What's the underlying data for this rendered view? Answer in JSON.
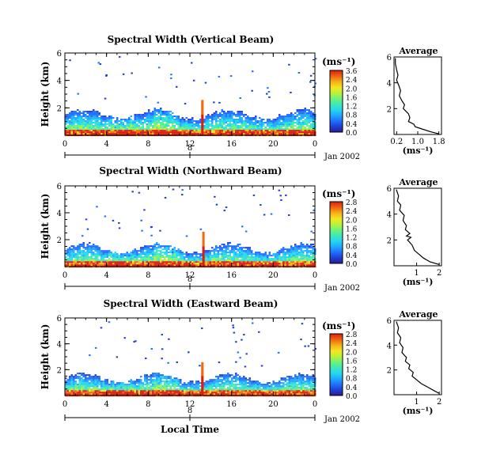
{
  "figure": {
    "xlabel": "Local Time",
    "colors": [
      "#2b1b8f",
      "#1f3fd6",
      "#1f6fff",
      "#1fa8ff",
      "#22d8f0",
      "#3ee8b8",
      "#6ef27a",
      "#b8f23a",
      "#f2e81f",
      "#f5b41a",
      "#f26a10",
      "#d91e10"
    ]
  },
  "chart_data": [
    {
      "type": "heatmap",
      "title": "Spectral Width (Vertical Beam)",
      "ylabel": "Height (km)",
      "xlim": [
        0,
        24
      ],
      "ylim": [
        0,
        6.0
      ],
      "xticks": [
        "0",
        "4",
        "8",
        "12",
        "16",
        "20",
        "0"
      ],
      "yticks": [
        "2",
        "4",
        "6"
      ],
      "date_tick": "8",
      "date_label": "Jan 2002",
      "colorbar": {
        "unit": "(ms⁻¹)",
        "ticks": [
          "3.6",
          "2.4",
          "2.0",
          "1.6",
          "1.2",
          "0.8",
          "0.4",
          "0.0"
        ],
        "range": [
          0,
          3.6
        ]
      },
      "spike_x": 13.2,
      "profile": {
        "title": "Average",
        "xlabel": "(ms⁻¹)",
        "xticks": [
          "0.2",
          "1.0",
          "1.8"
        ],
        "xlim": [
          0.1,
          1.9
        ],
        "yticks": [
          "2",
          "4",
          "6"
        ],
        "ylim": [
          0,
          6
        ],
        "x": [
          0.15,
          0.15,
          0.2,
          0.25,
          0.2,
          0.28,
          0.35,
          0.3,
          0.4,
          0.5,
          0.45,
          0.55,
          0.65,
          0.7,
          0.65,
          0.85,
          0.9,
          1.2,
          1.5,
          1.8
        ],
        "y": [
          5.9,
          5.5,
          5.0,
          4.6,
          4.2,
          3.8,
          3.4,
          3.0,
          2.6,
          2.3,
          2.0,
          1.8,
          1.6,
          1.3,
          1.0,
          0.8,
          0.6,
          0.4,
          0.2,
          0.05
        ]
      }
    },
    {
      "type": "heatmap",
      "title": "Spectral Width (Northward Beam)",
      "ylabel": "Height (km)",
      "xlim": [
        0,
        24
      ],
      "ylim": [
        0,
        6.0
      ],
      "xticks": [
        "0",
        "4",
        "8",
        "12",
        "16",
        "20",
        "0"
      ],
      "yticks": [
        "2",
        "4",
        "6"
      ],
      "date_tick": "8",
      "date_label": "Jan 2002",
      "colorbar": {
        "unit": "(ms⁻¹)",
        "ticks": [
          "2.8",
          "2.4",
          "2.0",
          "1.6",
          "1.2",
          "0.8",
          "0.4",
          "0.0"
        ],
        "range": [
          0,
          2.8
        ]
      },
      "spike_x": 13.3,
      "profile": {
        "title": "Average",
        "xlabel": "(ms⁻¹)",
        "xticks": [
          "1",
          "2"
        ],
        "xlim": [
          0,
          2.1
        ],
        "yticks": [
          "2",
          "4",
          "6"
        ],
        "ylim": [
          0,
          6
        ],
        "x": [
          0.1,
          0.2,
          0.15,
          0.3,
          0.25,
          0.45,
          0.4,
          0.55,
          0.5,
          0.7,
          0.55,
          0.75,
          0.6,
          0.8,
          0.9,
          1.1,
          1.3,
          1.6,
          2.0
        ],
        "y": [
          5.9,
          5.4,
          5.0,
          4.7,
          4.3,
          3.9,
          3.5,
          3.1,
          2.8,
          2.5,
          2.3,
          2.2,
          2.0,
          1.6,
          1.2,
          0.9,
          0.6,
          0.3,
          0.1
        ]
      }
    },
    {
      "type": "heatmap",
      "title": "Spectral Width (Eastward Beam)",
      "ylabel": "Height (km)",
      "xlim": [
        0,
        24
      ],
      "ylim": [
        0,
        6.0
      ],
      "xticks": [
        "0",
        "4",
        "8",
        "12",
        "16",
        "20",
        "0"
      ],
      "yticks": [
        "2",
        "4",
        "6"
      ],
      "date_tick": "8",
      "date_label": "Jan 2002",
      "colorbar": {
        "unit": "(ms⁻¹)",
        "ticks": [
          "2.8",
          "2.4",
          "2.0",
          "1.6",
          "1.2",
          "0.8",
          "0.4",
          "0.0"
        ],
        "range": [
          0,
          2.8
        ]
      },
      "spike_x": 13.2,
      "profile": {
        "title": "Average",
        "xlabel": "(ms⁻¹)",
        "xticks": [
          "1",
          "2"
        ],
        "xlim": [
          0,
          2.1
        ],
        "yticks": [
          "2",
          "4",
          "6"
        ],
        "ylim": [
          0,
          6
        ],
        "x": [
          0.1,
          0.2,
          0.15,
          0.3,
          0.25,
          0.4,
          0.35,
          0.55,
          0.5,
          0.7,
          0.65,
          0.85,
          0.8,
          1.0,
          1.2,
          1.5,
          1.8,
          2.0
        ],
        "y": [
          5.9,
          5.4,
          5.0,
          4.6,
          4.2,
          3.8,
          3.4,
          3.0,
          2.7,
          2.4,
          2.1,
          1.8,
          1.5,
          1.2,
          0.9,
          0.6,
          0.3,
          0.1
        ]
      }
    }
  ]
}
